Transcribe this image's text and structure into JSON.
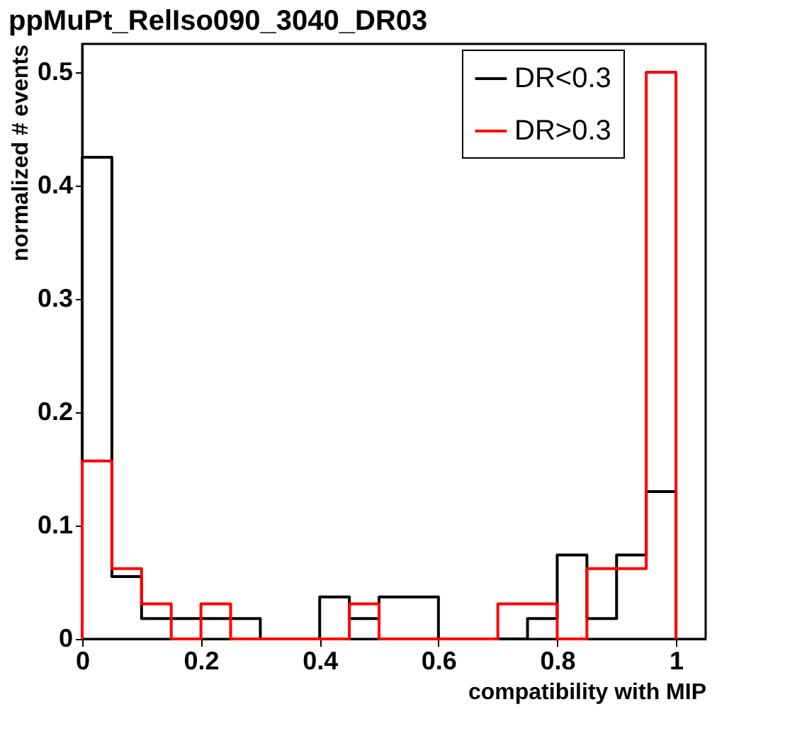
{
  "chart_data": {
    "type": "histogram",
    "title": "ppMuPt_RelIso090_3040_DR03",
    "xlabel": "compatibility with MIP",
    "ylabel": "normalized # events",
    "bins": [
      0,
      0.05,
      0.1,
      0.15,
      0.2,
      0.25,
      0.3,
      0.35,
      0.4,
      0.45,
      0.5,
      0.55,
      0.6,
      0.65,
      0.7,
      0.75,
      0.8,
      0.85,
      0.9,
      0.95,
      1.0
    ],
    "series": [
      {
        "name": "DR<0.3",
        "color": "#000000",
        "values": [
          0.425,
          0.055,
          0.018,
          0.018,
          0.018,
          0.018,
          0,
          0,
          0.037,
          0.018,
          0.037,
          0.037,
          0,
          0,
          0,
          0.018,
          0.074,
          0.018,
          0.074,
          0.13
        ]
      },
      {
        "name": "DR>0.3",
        "color": "#ff0000",
        "values": [
          0.157,
          0.062,
          0.031,
          0,
          0.031,
          0,
          0,
          0,
          0,
          0.031,
          0,
          0,
          0,
          0,
          0.031,
          0.031,
          0,
          0.062,
          0.062,
          0.5
        ]
      }
    ],
    "xlim": [
      0,
      1.05
    ],
    "xticks": [
      0,
      0.2,
      0.4,
      0.6,
      0.8,
      1
    ],
    "ylim": [
      0,
      0.525
    ],
    "yticks": [
      0,
      0.1,
      0.2,
      0.3,
      0.4,
      0.5
    ],
    "grid": false,
    "legend": "top right"
  }
}
